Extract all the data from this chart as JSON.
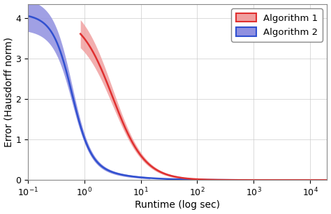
{
  "xlabel": "Runtime (log sec)",
  "ylabel": "Error (Hausdorff norm)",
  "xlim": [
    0.1,
    20000
  ],
  "ylim": [
    0,
    4.35
  ],
  "yticks": [
    0,
    1,
    2,
    3,
    4
  ],
  "bg_color": "#ffffff",
  "fig_color": "#ffffff",
  "alg1_color": "#e03030",
  "alg1_fill": "#f0a0a0",
  "alg2_color": "#3050d0",
  "alg2_fill": "#9090e0",
  "legend_labels": [
    "Algorithm 1",
    "Algorithm 2"
  ],
  "grid_color": "#cccccc",
  "font_size": 10
}
